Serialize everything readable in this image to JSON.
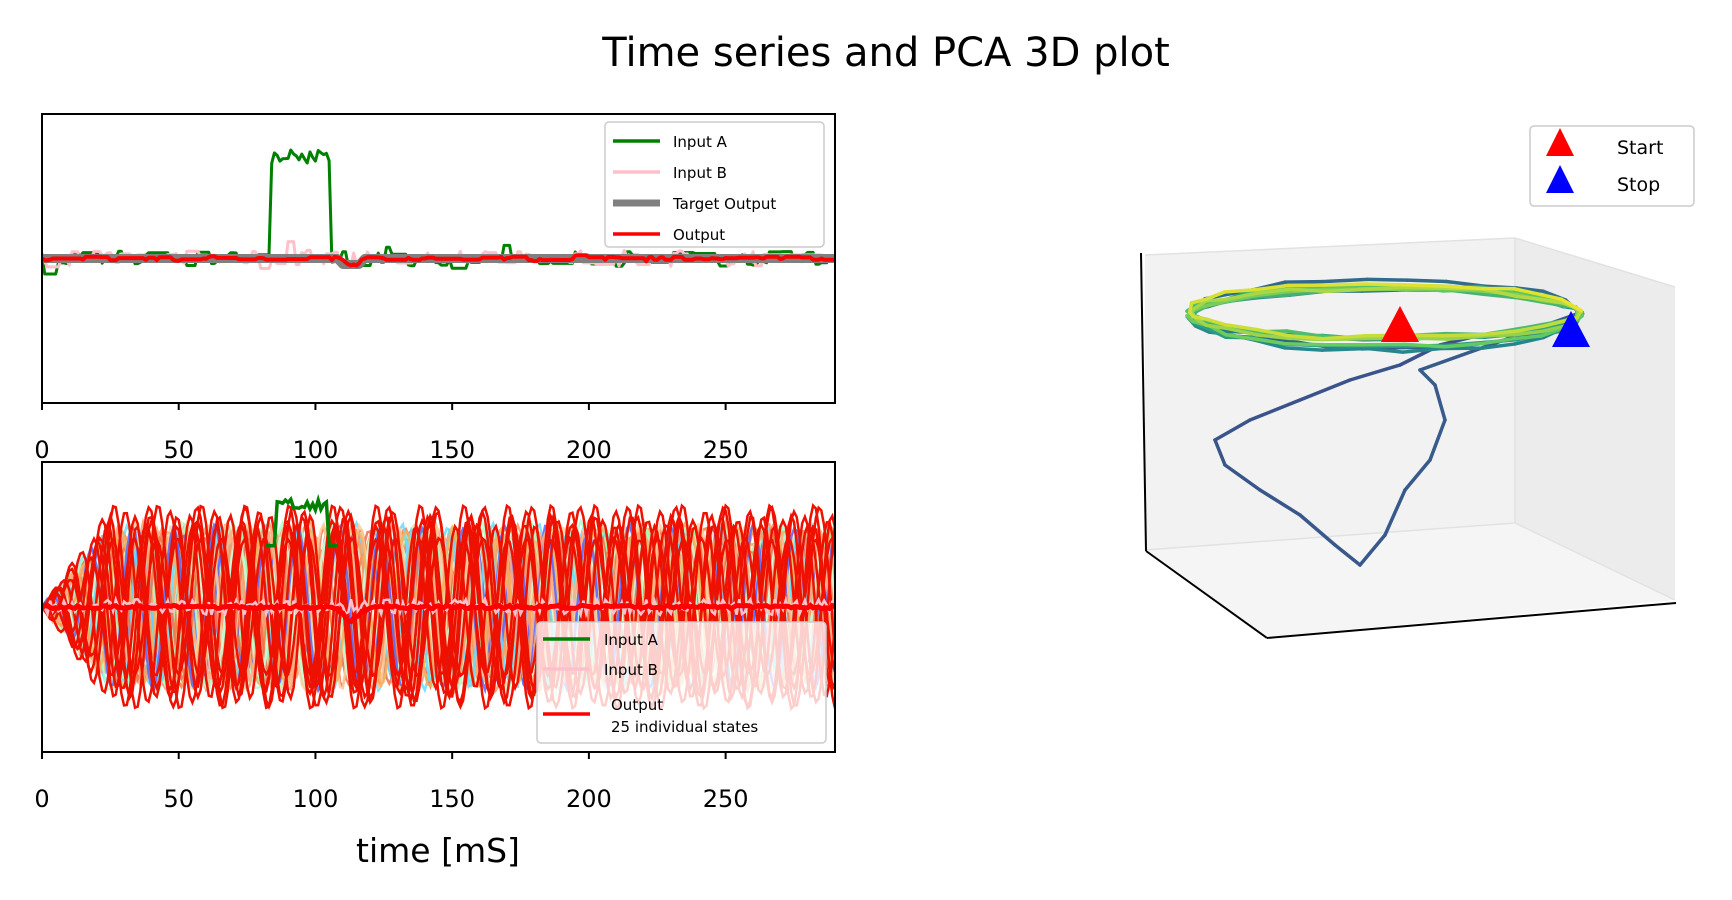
{
  "title": "Time series and PCA 3D plot",
  "chart_data": [
    {
      "type": "line",
      "panel": "top",
      "xlim": [
        0,
        290
      ],
      "x_ticks": [
        0,
        50,
        100,
        150,
        200,
        250
      ],
      "ylim": [
        -1.2,
        1.2
      ],
      "legend": "top-right",
      "series": [
        {
          "name": "Input A",
          "color": "#008000",
          "baseline": 0.0,
          "noise": 0.06,
          "pulse": {
            "start": 84,
            "end": 105,
            "value": 0.85
          }
        },
        {
          "name": "Input B",
          "color": "#ffc0cb",
          "baseline": 0.0,
          "noise": 0.07
        },
        {
          "name": "Target Output",
          "color": "#808080",
          "segments": [
            [
              0,
              0.0
            ],
            [
              108,
              0.0
            ],
            [
              110,
              -0.05
            ],
            [
              116,
              -0.05
            ],
            [
              118,
              0.0
            ],
            [
              290,
              0.0
            ]
          ]
        },
        {
          "name": " Output",
          "color": "#ff0000",
          "baseline": 0.0,
          "noise": 0.015,
          "dip": {
            "center": 113,
            "depth": -0.07
          }
        }
      ]
    },
    {
      "type": "line",
      "panel": "bottom",
      "xlim": [
        0,
        290
      ],
      "x_ticks": [
        0,
        50,
        100,
        150,
        200,
        250
      ],
      "xlabel": "time [mS]",
      "ylim": [
        -1.3,
        1.3
      ],
      "legend": "lower-right",
      "series": [
        {
          "name": "Input A",
          "color": "#008000",
          "pulse": {
            "start": 86,
            "end": 104,
            "value": 0.92
          }
        },
        {
          "name": "Input B",
          "color": "#ffc0cb"
        },
        {
          "name": "Output\n25 individual states",
          "color": "#ff0000",
          "n_states": 25,
          "amplitude_range": [
            0.5,
            0.75
          ],
          "period_ms": 16
        }
      ]
    },
    {
      "type": "line3d",
      "panel": "pca",
      "colormap": "viridis",
      "legend": "top-right",
      "markers": [
        {
          "name": "Start",
          "color": "#ff0000",
          "symbol": "triangle",
          "pc": [
            0.6,
            0.5,
            0.85
          ]
        },
        {
          "name": "Stop",
          "color": "#0000ff",
          "symbol": "triangle",
          "pc": [
            1.0,
            0.5,
            0.85
          ]
        }
      ]
    }
  ]
}
